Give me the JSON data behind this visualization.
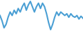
{
  "values": [
    60,
    45,
    25,
    35,
    55,
    70,
    60,
    75,
    65,
    80,
    70,
    85,
    95,
    75,
    90,
    100,
    85,
    70,
    85,
    95,
    80,
    95,
    85,
    65,
    40,
    20,
    35,
    55,
    70,
    60,
    70,
    65,
    60,
    65,
    55,
    65,
    58,
    55,
    60,
    50,
    58,
    52
  ],
  "line_color": "#4a9fd4",
  "bg_color": "#ffffff",
  "linewidth": 1.5
}
